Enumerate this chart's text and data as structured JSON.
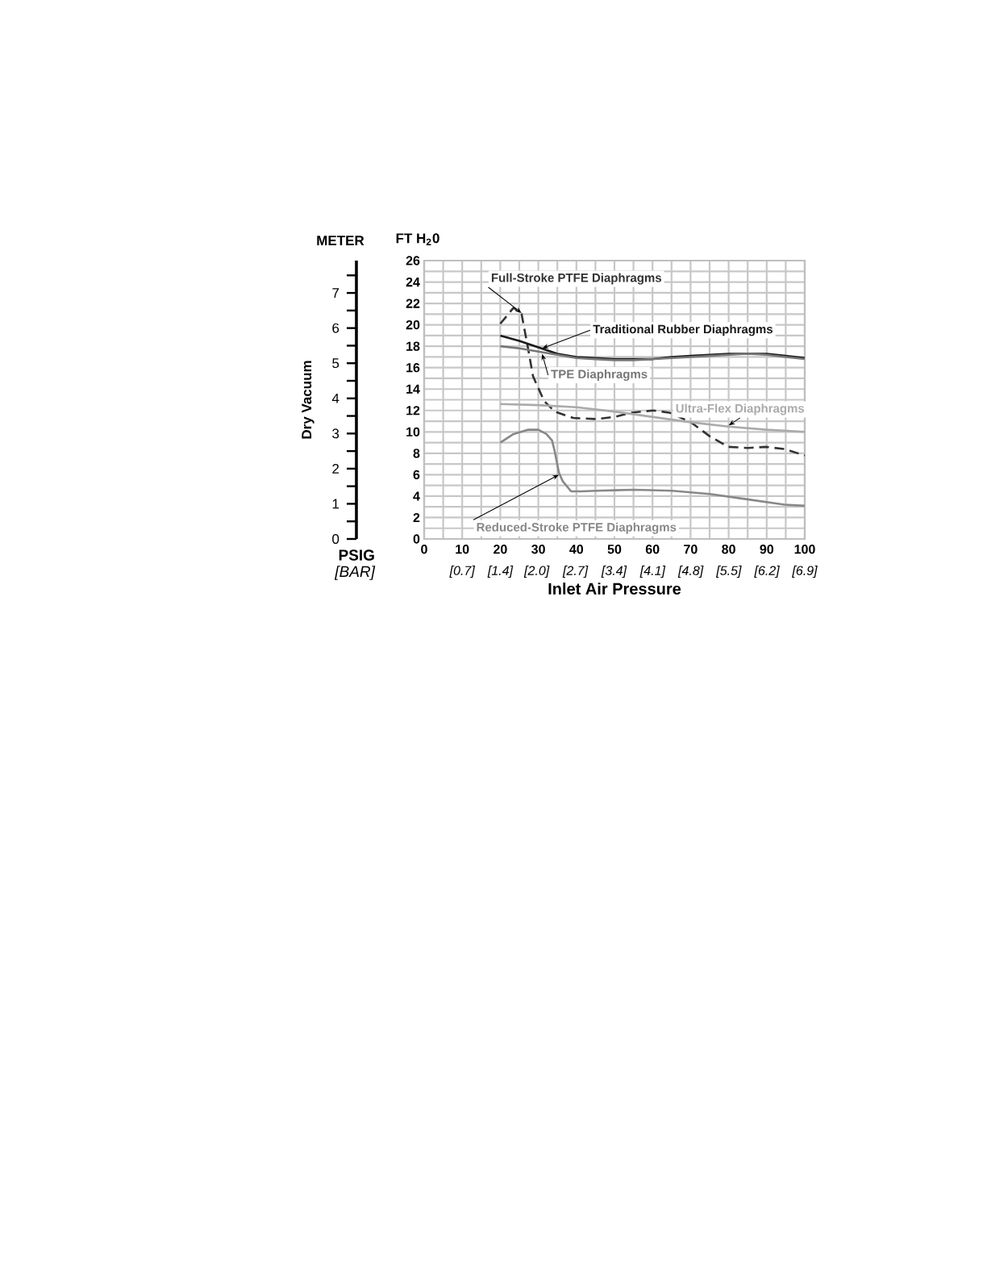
{
  "chart_data": {
    "type": "line",
    "xlabel": "Inlet Air Pressure",
    "ylabel": "FT H$_{2}$0",
    "y2label": "METER",
    "x2label": "[BAR]",
    "annotations": [
      "Dry Vacuum",
      "PSIG"
    ],
    "xlim": [
      0,
      100
    ],
    "xticks": [
      0,
      10,
      20,
      30,
      40,
      50,
      60,
      70,
      80,
      90,
      100
    ],
    "x2lim": [
      0,
      6.895
    ],
    "x2ticks": [
      {
        "value": 0.69,
        "label": "[0.7]"
      },
      {
        "value": 1.38,
        "label": "[1.4]"
      },
      {
        "value": 2.04,
        "label": "[2.0]"
      },
      {
        "value": 2.74,
        "label": "[2.7]"
      },
      {
        "value": 3.44,
        "label": "[3.4]"
      },
      {
        "value": 4.14,
        "label": "[4.1]"
      },
      {
        "value": 4.83,
        "label": "[4.8]"
      },
      {
        "value": 5.52,
        "label": "[5.5]"
      },
      {
        "value": 6.21,
        "label": "[6.2]"
      },
      {
        "value": 6.895,
        "label": "[6.9]"
      }
    ],
    "ylim": [
      0,
      26
    ],
    "yticks": [
      0,
      2,
      4,
      6,
      8,
      10,
      12,
      14,
      16,
      18,
      20,
      22,
      24,
      26
    ],
    "y2lim": [
      0,
      7.92
    ],
    "y2ticks": [
      0,
      1,
      2,
      3,
      4,
      5,
      6,
      7
    ],
    "grid": true,
    "series": [
      {
        "name": "Full-Stroke PTFE Diaphragms",
        "color": "#333333",
        "line_style": "dashed",
        "x": [
          20,
          23.5,
          25.6,
          27.2,
          28.6,
          31.5,
          34.3,
          39.2,
          45.3,
          50,
          54.5,
          60.2,
          64.4,
          70.1,
          75,
          79.9,
          85,
          89.8,
          94.7,
          100
        ],
        "values": [
          20.1,
          21.6,
          21.0,
          18.0,
          15.2,
          12.9,
          11.9,
          11.3,
          11.2,
          11.4,
          11.8,
          12.0,
          11.8,
          10.9,
          9.6,
          8.6,
          8.5,
          8.6,
          8.4,
          7.8
        ]
      },
      {
        "name": "Traditional Rubber Diaphragms",
        "color": "#1a1a1a",
        "line_style": "solid",
        "x": [
          20,
          25,
          30,
          35,
          40,
          45,
          50,
          55,
          60,
          65,
          70,
          75,
          80,
          85,
          90,
          95,
          100
        ],
        "values": [
          19.0,
          18.5,
          17.9,
          17.3,
          17.0,
          16.9,
          16.8,
          16.8,
          16.8,
          17.0,
          17.1,
          17.2,
          17.3,
          17.3,
          17.3,
          17.1,
          16.9
        ]
      },
      {
        "name": "TPE Diaphragms",
        "color": "#777777",
        "line_style": "solid",
        "x": [
          20,
          25,
          30,
          35,
          40,
          45,
          50,
          55,
          60,
          65,
          70,
          75,
          80,
          85,
          90,
          95,
          100
        ],
        "values": [
          18.0,
          17.8,
          17.5,
          17.2,
          16.9,
          16.8,
          16.7,
          16.7,
          16.8,
          16.9,
          17.0,
          17.1,
          17.2,
          17.3,
          17.2,
          17.0,
          16.8
        ]
      },
      {
        "name": "Ultra-Flex Diaphragms",
        "color": "#aaaaaa",
        "line_style": "solid",
        "x": [
          20,
          30,
          40,
          50,
          60,
          70,
          80,
          90,
          100
        ],
        "values": [
          12.6,
          12.5,
          12.3,
          11.9,
          11.4,
          10.9,
          10.5,
          10.2,
          10.0
        ]
      },
      {
        "name": "Reduced-Stroke PTFE Diaphragms",
        "color": "#888888",
        "line_style": "solid",
        "x": [
          20,
          23.5,
          27.2,
          30,
          32.1,
          33.6,
          34.3,
          35.4,
          36.4,
          38.6,
          41.3,
          45.3,
          55.2,
          65.1,
          75,
          84.9,
          94.7,
          100
        ],
        "values": [
          9.0,
          9.8,
          10.2,
          10.2,
          9.8,
          9.2,
          8.2,
          6.2,
          5.4,
          4.45,
          4.45,
          4.5,
          4.6,
          4.5,
          4.2,
          3.7,
          3.2,
          3.1
        ]
      }
    ]
  }
}
